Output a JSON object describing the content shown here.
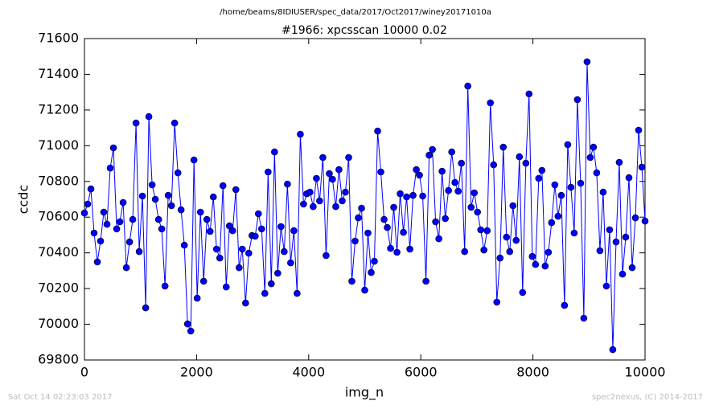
{
  "chart_data": {
    "type": "line",
    "suptitle": "/home/beams/8IDIUSER/spec_data/2017/Oct2017/winey20171010a",
    "title": "#1966: xpcsscan 10000 0.02",
    "xlabel": "img_n",
    "ylabel": "ccdc",
    "footer_left": "Sat Oct 14 02:23:03 2017",
    "footer_right": "spec2nexus, (C) 2014-2017",
    "xlim": [
      0,
      10000
    ],
    "xticks": [
      0,
      2000,
      4000,
      6000,
      8000,
      10000
    ],
    "ylim": [
      69800,
      71600
    ],
    "yticks": [
      69800,
      70000,
      70200,
      70400,
      70600,
      70800,
      71000,
      71200,
      71400,
      71600
    ],
    "grid": false,
    "x": [
      0,
      57,
      115,
      172,
      230,
      287,
      345,
      402,
      460,
      517,
      575,
      632,
      690,
      747,
      805,
      862,
      920,
      977,
      1034,
      1092,
      1149,
      1207,
      1264,
      1322,
      1379,
      1437,
      1494,
      1552,
      1609,
      1667,
      1724,
      1782,
      1839,
      1897,
      1954,
      2011,
      2069,
      2126,
      2184,
      2241,
      2299,
      2356,
      2414,
      2471,
      2529,
      2586,
      2644,
      2701,
      2759,
      2816,
      2874,
      2931,
      2989,
      3046,
      3103,
      3161,
      3218,
      3276,
      3333,
      3391,
      3448,
      3506,
      3563,
      3621,
      3678,
      3736,
      3793,
      3851,
      3908,
      3966,
      4023,
      4080,
      4138,
      4195,
      4253,
      4310,
      4368,
      4425,
      4483,
      4540,
      4598,
      4655,
      4713,
      4770,
      4828,
      4885,
      4943,
      5000,
      5057,
      5115,
      5172,
      5230,
      5287,
      5345,
      5402,
      5460,
      5517,
      5575,
      5632,
      5690,
      5747,
      5805,
      5862,
      5920,
      5977,
      6034,
      6092,
      6149,
      6207,
      6264,
      6322,
      6379,
      6437,
      6494,
      6552,
      6609,
      6667,
      6724,
      6782,
      6839,
      6897,
      6954,
      7011,
      7069,
      7126,
      7184,
      7241,
      7299,
      7356,
      7414,
      7471,
      7529,
      7586,
      7644,
      7701,
      7759,
      7816,
      7874,
      7931,
      7989,
      8046,
      8103,
      8161,
      8218,
      8276,
      8333,
      8391,
      8448,
      8506,
      8563,
      8621,
      8678,
      8736,
      8793,
      8851,
      8908,
      8966,
      9023,
      9080,
      9138,
      9195,
      9253,
      9310,
      9368,
      9425,
      9483,
      9540,
      9598,
      9655,
      9713,
      9770,
      9828,
      9885,
      9943,
      10000
    ],
    "series": [
      {
        "name": "ccdc",
        "color": "#0000ff",
        "values": [
          70623,
          70673,
          70758,
          70511,
          70349,
          70466,
          70628,
          70560,
          70875,
          70988,
          70534,
          70574,
          70682,
          70317,
          70461,
          70587,
          71127,
          70407,
          70718,
          70092,
          71163,
          70781,
          70700,
          70587,
          70534,
          70214,
          70722,
          70664,
          71127,
          70848,
          70641,
          70443,
          70002,
          69962,
          70920,
          70146,
          70628,
          70241,
          70587,
          70520,
          70713,
          70421,
          70371,
          70776,
          70209,
          70551,
          70524,
          70754,
          70317,
          70421,
          70119,
          70398,
          70497,
          70493,
          70619,
          70534,
          70173,
          70853,
          70227,
          70965,
          70286,
          70547,
          70407,
          70785,
          70344,
          70524,
          70173,
          71064,
          70673,
          70731,
          70740,
          70659,
          70817,
          70691,
          70934,
          70385,
          70844,
          70812,
          70659,
          70866,
          70691,
          70740,
          70934,
          70241,
          70466,
          70596,
          70650,
          70191,
          70511,
          70290,
          70353,
          71082,
          70853,
          70587,
          70542,
          70425,
          70655,
          70403,
          70731,
          70515,
          70713,
          70421,
          70722,
          70866,
          70835,
          70718,
          70241,
          70947,
          70979,
          70574,
          70479,
          70857,
          70592,
          70749,
          70965,
          70794,
          70745,
          70902,
          70407,
          71334,
          70655,
          70736,
          70628,
          70529,
          70416,
          70524,
          71240,
          70893,
          70124,
          70371,
          70992,
          70488,
          70407,
          70664,
          70470,
          70938,
          70178,
          70902,
          71290,
          70380,
          70335,
          70817,
          70862,
          70326,
          70403,
          70569,
          70781,
          70605,
          70722,
          70106,
          71006,
          70767,
          70511,
          71258,
          70790,
          70034,
          71470,
          70934,
          70992,
          70848,
          70412,
          70740,
          70214,
          70529,
          69858,
          70461,
          70907,
          70281,
          70488,
          70821,
          70317,
          70596,
          71087,
          70880,
          70578
        ]
      }
    ]
  }
}
